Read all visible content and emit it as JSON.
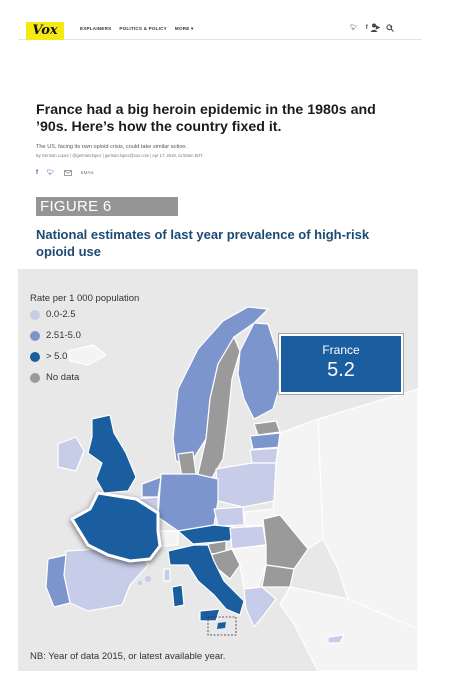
{
  "header": {
    "logo": "Vox",
    "nav": [
      "EXPLAINERS",
      "POLITICS & POLICY",
      "MORE ▾"
    ],
    "social_icons": [
      "twitter-icon",
      "facebook-icon",
      "youtube-icon",
      "rss-icon"
    ]
  },
  "article": {
    "headline": "France had a big heroin epidemic in the 1980s and ’90s. Here’s how the country fixed it.",
    "dek": "The US, facing its own opioid crisis, could take similar action.",
    "byline": "By German Lopez | @germanrlopez | german.lopez@vox.com | Apr 17, 2018, 11:50am EDT",
    "share_email": "EMAIL"
  },
  "figure": {
    "label": "FIGURE 6",
    "title": "National estimates of last year prevalence of high-risk opioid use",
    "legend_title": "Rate per 1 000 population",
    "legend": [
      {
        "label": "0.0-2.5",
        "color": "#c7cde8"
      },
      {
        "label": "2.51-5.0",
        "color": "#7c96cd"
      },
      {
        "label": "> 5.0",
        "color": "#1b5e9f"
      },
      {
        "label": "No data",
        "color": "#9a9a9a"
      }
    ],
    "callout": {
      "country": "France",
      "value": "5.2"
    },
    "note": "NB: Year of data 2015, or latest available year."
  },
  "colors": {
    "low": "#c7cde8",
    "mid": "#7c96cd",
    "high": "#1b5e9f",
    "nodata": "#9a9a9a",
    "nonmember": "#f4f4f4",
    "panel": "#e8e8e8",
    "logo_yellow": "#f5e914"
  }
}
